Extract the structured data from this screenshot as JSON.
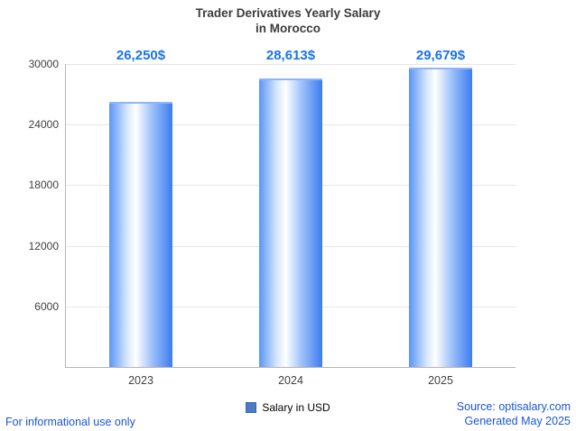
{
  "title": {
    "line1": "Trader Derivatives Yearly Salary",
    "line2": "in Morocco"
  },
  "chart_data": {
    "type": "bar",
    "title": "Trader Derivatives Yearly Salary in Morocco",
    "categories": [
      "2023",
      "2024",
      "2025"
    ],
    "values": [
      26250,
      28613,
      29679
    ],
    "value_labels": [
      "26,250$",
      "28,613$",
      "29,679$"
    ],
    "xlabel": "",
    "ylabel": "",
    "ylim": [
      0,
      30000
    ],
    "yticks": [
      6000,
      12000,
      18000,
      24000,
      30000
    ],
    "grid": true,
    "legend": {
      "label": "Salary in USD",
      "position": "bottom"
    },
    "bar_color": "#4285f4",
    "value_label_color": "#1a73e8"
  },
  "footer": {
    "disclaimer": "For informational use only",
    "source": "Source: optisalary.com",
    "generated": "Generated May 2025"
  }
}
